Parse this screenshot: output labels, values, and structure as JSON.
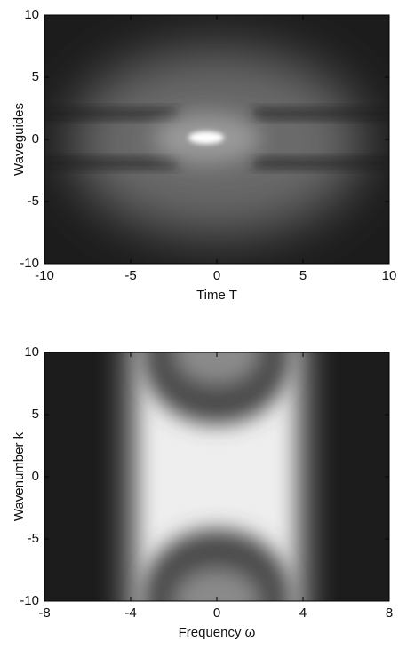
{
  "chart_data": [
    {
      "type": "heatmap",
      "xlabel": "Time T",
      "ylabel": "Waveguides",
      "xlim": [
        -10,
        10
      ],
      "ylim": [
        -10,
        10
      ],
      "xticks": [
        -10,
        -5,
        0,
        5,
        10
      ],
      "yticks": [
        -10,
        -5,
        0,
        5,
        10
      ]
    },
    {
      "type": "heatmap",
      "xlabel": "Frequency ω",
      "ylabel": "Wavenumber k",
      "xlim": [
        -8,
        8
      ],
      "ylim": [
        -10,
        10
      ],
      "xticks": [
        -8,
        -4,
        0,
        4,
        8
      ],
      "yticks": [
        -10,
        -5,
        0,
        5,
        10
      ]
    }
  ]
}
